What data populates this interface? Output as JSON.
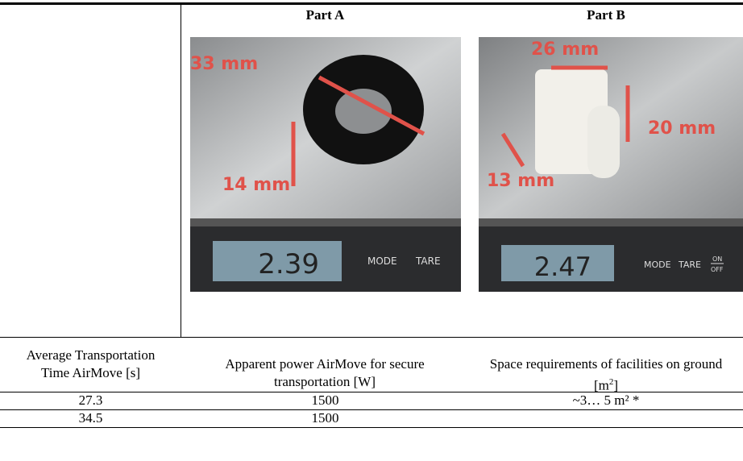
{
  "table": {
    "columns": [
      "Part A",
      "Part B"
    ],
    "photos": [
      {
        "dimensions": [
          "33 mm",
          "14 mm"
        ],
        "display": "2.39",
        "buttons": [
          "MODE",
          "TARE"
        ]
      },
      {
        "dimensions": [
          "26 mm",
          "20 mm",
          "13 mm"
        ],
        "display": "2.47",
        "buttons": [
          "MODE",
          "TARE",
          "ON",
          "OFF"
        ]
      }
    ],
    "header": [
      {
        "text": "Average Transportation Time AirMove [s]"
      },
      {
        "text": "Apparent power AirMove for secure transportation [W]"
      },
      {
        "text": "Space requirements of facilities on ground [m",
        "sup": "2",
        "suffix": "]"
      }
    ],
    "rows": [
      [
        "27.3",
        "1500",
        "~3… 5 m² *"
      ],
      [
        "34.5",
        "1500"
      ]
    ]
  }
}
